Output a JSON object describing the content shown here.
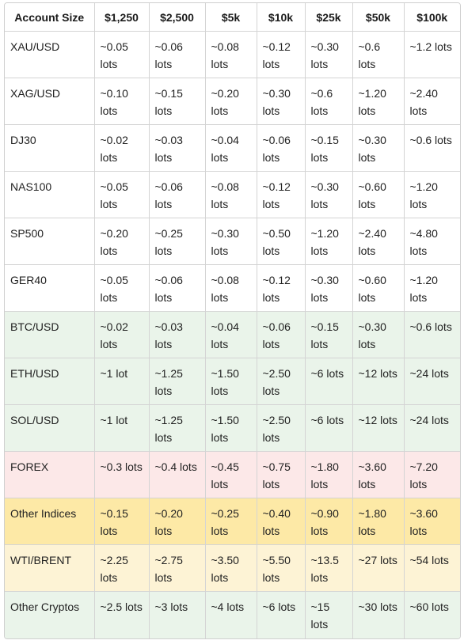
{
  "colors": {
    "default_row_bg": "#ffffff",
    "crypto_row_bg": "#eaf4ea",
    "forex_row_bg": "#fce8e8",
    "other_indices_row_bg": "#fde9a6",
    "wti_row_bg": "#fdf3d5",
    "border": "#d4d4d4"
  },
  "table": {
    "headers": [
      "Account Size",
      "$1,250",
      "$2,500",
      "$5k",
      "$10k",
      "$25k",
      "$50k",
      "$100k"
    ],
    "rows": [
      {
        "label": "XAU/USD",
        "bg": "default",
        "values": [
          "~0.05 lots",
          "~0.06 lots",
          "~0.08 lots",
          "~0.12 lots",
          "~0.30 lots",
          "~0.6 lots",
          "~1.2 lots"
        ]
      },
      {
        "label": "XAG/USD",
        "bg": "default",
        "values": [
          "~0.10 lots",
          "~0.15 lots",
          "~0.20 lots",
          "~0.30 lots",
          "~0.6 lots",
          "~1.20 lots",
          "~2.40 lots"
        ]
      },
      {
        "label": "DJ30",
        "bg": "default",
        "values": [
          "~0.02 lots",
          "~0.03 lots",
          "~0.04 lots",
          "~0.06 lots",
          "~0.15 lots",
          "~0.30 lots",
          "~0.6 lots"
        ]
      },
      {
        "label": "NAS100",
        "bg": "default",
        "values": [
          "~0.05 lots",
          "~0.06 lots",
          "~0.08 lots",
          "~0.12 lots",
          "~0.30 lots",
          "~0.60 lots",
          "~1.20 lots"
        ]
      },
      {
        "label": "SP500",
        "bg": "default",
        "values": [
          "~0.20 lots",
          "~0.25 lots",
          "~0.30 lots",
          "~0.50 lots",
          "~1.20 lots",
          "~2.40 lots",
          "~4.80 lots"
        ]
      },
      {
        "label": "GER40",
        "bg": "default",
        "values": [
          "~0.05 lots",
          "~0.06 lots",
          "~0.08 lots",
          "~0.12 lots",
          "~0.30 lots",
          "~0.60 lots",
          "~1.20 lots"
        ]
      },
      {
        "label": "BTC/USD",
        "bg": "crypto",
        "values": [
          "~0.02 lots",
          "~0.03 lots",
          "~0.04 lots",
          "~0.06 lots",
          "~0.15 lots",
          "~0.30 lots",
          "~0.6 lots"
        ]
      },
      {
        "label": "ETH/USD",
        "bg": "crypto",
        "values": [
          "~1 lot",
          "~1.25 lots",
          "~1.50 lots",
          "~2.50 lots",
          "~6 lots",
          "~12 lots",
          "~24 lots"
        ]
      },
      {
        "label": "SOL/USD",
        "bg": "crypto",
        "values": [
          "~1 lot",
          "~1.25 lots",
          "~1.50 lots",
          "~2.50 lots",
          "~6 lots",
          "~12 lots",
          "~24 lots"
        ]
      },
      {
        "label": "FOREX",
        "bg": "forex",
        "values": [
          "~0.3 lots",
          "~0.4 lots",
          "~0.45 lots",
          "~0.75 lots",
          "~1.80 lots",
          "~3.60 lots",
          "~7.20 lots"
        ]
      },
      {
        "label": "Other Indices",
        "bg": "other_indices",
        "values": [
          "~0.15 lots",
          "~0.20 lots",
          "~0.25 lots",
          "~0.40 lots",
          "~0.90 lots",
          "~1.80 lots",
          "~3.60 lots"
        ]
      },
      {
        "label": "WTI/BRENT",
        "bg": "wti",
        "values": [
          "~2.25 lots",
          "~2.75 lots",
          "~3.50 lots",
          "~5.50 lots",
          "~13.5 lots",
          "~27 lots",
          "~54 lots"
        ]
      },
      {
        "label": "Other Cryptos",
        "bg": "crypto",
        "values": [
          "~2.5 lots",
          "~3 lots",
          "~4 lots",
          "~6 lots",
          "~15 lots",
          "~30 lots",
          "~60 lots"
        ]
      }
    ]
  }
}
